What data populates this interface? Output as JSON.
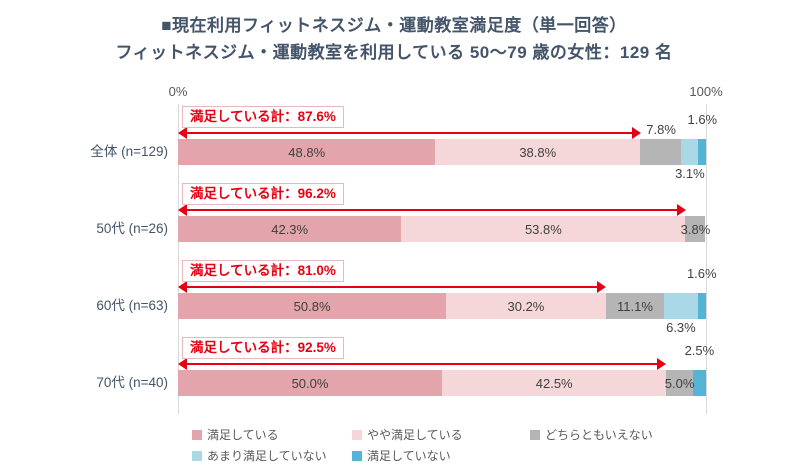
{
  "title": {
    "line1": "■現在利用フィットネスジム・運動教室満足度（単一回答）",
    "line2": "フィットネスジム・運動教室を利用している 50～79 歳の女性：129 名"
  },
  "axis": {
    "left_label": "0%",
    "right_label": "100%"
  },
  "colors": {
    "satisfied": "#e3a4ab",
    "somewhat_satisfied": "#f6d7d9",
    "neither": "#b5b5b5",
    "somewhat_dissatisfied": "#abd8e7",
    "dissatisfied": "#54b4d6",
    "arrow_red": "#e60012",
    "callout_border": "#e9b8bc",
    "title_text": "#44546a",
    "label_text": "#404040",
    "axis_text": "#595959",
    "legend_text": "#595959",
    "gridline": "#d9d9d9"
  },
  "legend": {
    "rows": [
      [
        {
          "key": "satisfied",
          "label": "満足している"
        },
        {
          "key": "somewhat_satisfied",
          "label": "やや満足している"
        },
        {
          "key": "neither",
          "label": "どちらともいえない"
        }
      ],
      [
        {
          "key": "somewhat_dissatisfied",
          "label": "あまり満足していない"
        },
        {
          "key": "dissatisfied",
          "label": "満足していない"
        }
      ]
    ]
  },
  "chart_data": {
    "type": "bar",
    "subtype": "horizontal-stacked-percent",
    "xlim": [
      0,
      100
    ],
    "categories": [
      "全体 (n=129)",
      "50代 (n=26)",
      "60代 (n=63)",
      "70代 (n=40)"
    ],
    "series": [
      {
        "key": "satisfied",
        "name": "満足している",
        "values": [
          48.8,
          42.3,
          50.8,
          50.0
        ]
      },
      {
        "key": "somewhat_satisfied",
        "name": "やや満足している",
        "values": [
          38.8,
          53.8,
          30.2,
          42.5
        ]
      },
      {
        "key": "neither",
        "name": "どちらともいえない",
        "values": [
          7.8,
          3.8,
          11.1,
          5.0
        ]
      },
      {
        "key": "somewhat_dissatisfied",
        "name": "あまり満足していない",
        "values": [
          3.1,
          0,
          6.3,
          0
        ]
      },
      {
        "key": "dissatisfied",
        "name": "満足していない",
        "values": [
          1.6,
          0,
          1.6,
          2.5
        ]
      }
    ],
    "callouts": [
      {
        "label": "満足している計：87.6%",
        "value": 87.6
      },
      {
        "label": "満足している計：96.2%",
        "value": 96.2
      },
      {
        "label": "満足している計：81.0%",
        "value": 81.0
      },
      {
        "label": "満足している計：92.5%",
        "value": 92.5
      }
    ],
    "label_placement": [
      [
        "inside",
        "inside",
        "above",
        "below",
        "top"
      ],
      [
        "inside",
        "inside",
        "inside",
        "none",
        "none"
      ],
      [
        "inside",
        "inside",
        "inside",
        "below",
        "top"
      ],
      [
        "inside",
        "inside",
        "inside",
        "none",
        "top"
      ]
    ]
  }
}
